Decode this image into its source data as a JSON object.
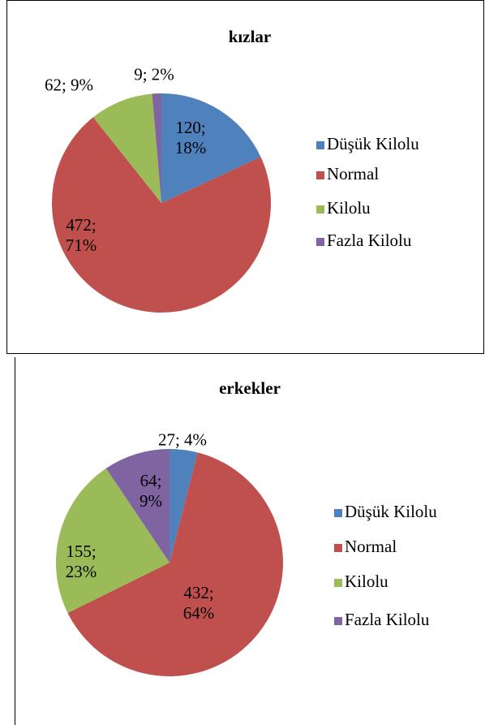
{
  "chart_data": [
    {
      "type": "pie",
      "title": "kızlar",
      "categories": [
        "Düşük Kilolu",
        "Normal",
        "Kilolu",
        "Fazla Kilolu"
      ],
      "values": [
        120,
        472,
        62,
        9
      ],
      "value_labels": [
        "120; 18%",
        "472; 71%",
        "62; 9%",
        "9; 2%"
      ],
      "colors": [
        "#4f81bd",
        "#c0504d",
        "#9bbb59",
        "#8064a2"
      ]
    },
    {
      "type": "pie",
      "title": "erkekler",
      "categories": [
        "Düşük Kilolu",
        "Normal",
        "Kilolu",
        "Fazla Kilolu"
      ],
      "values": [
        27,
        432,
        155,
        64
      ],
      "value_labels": [
        "27; 4%",
        "432; 64%",
        "155; 23%",
        "64; 9%"
      ],
      "colors": [
        "#4f81bd",
        "#c0504d",
        "#9bbb59",
        "#8064a2"
      ]
    }
  ]
}
